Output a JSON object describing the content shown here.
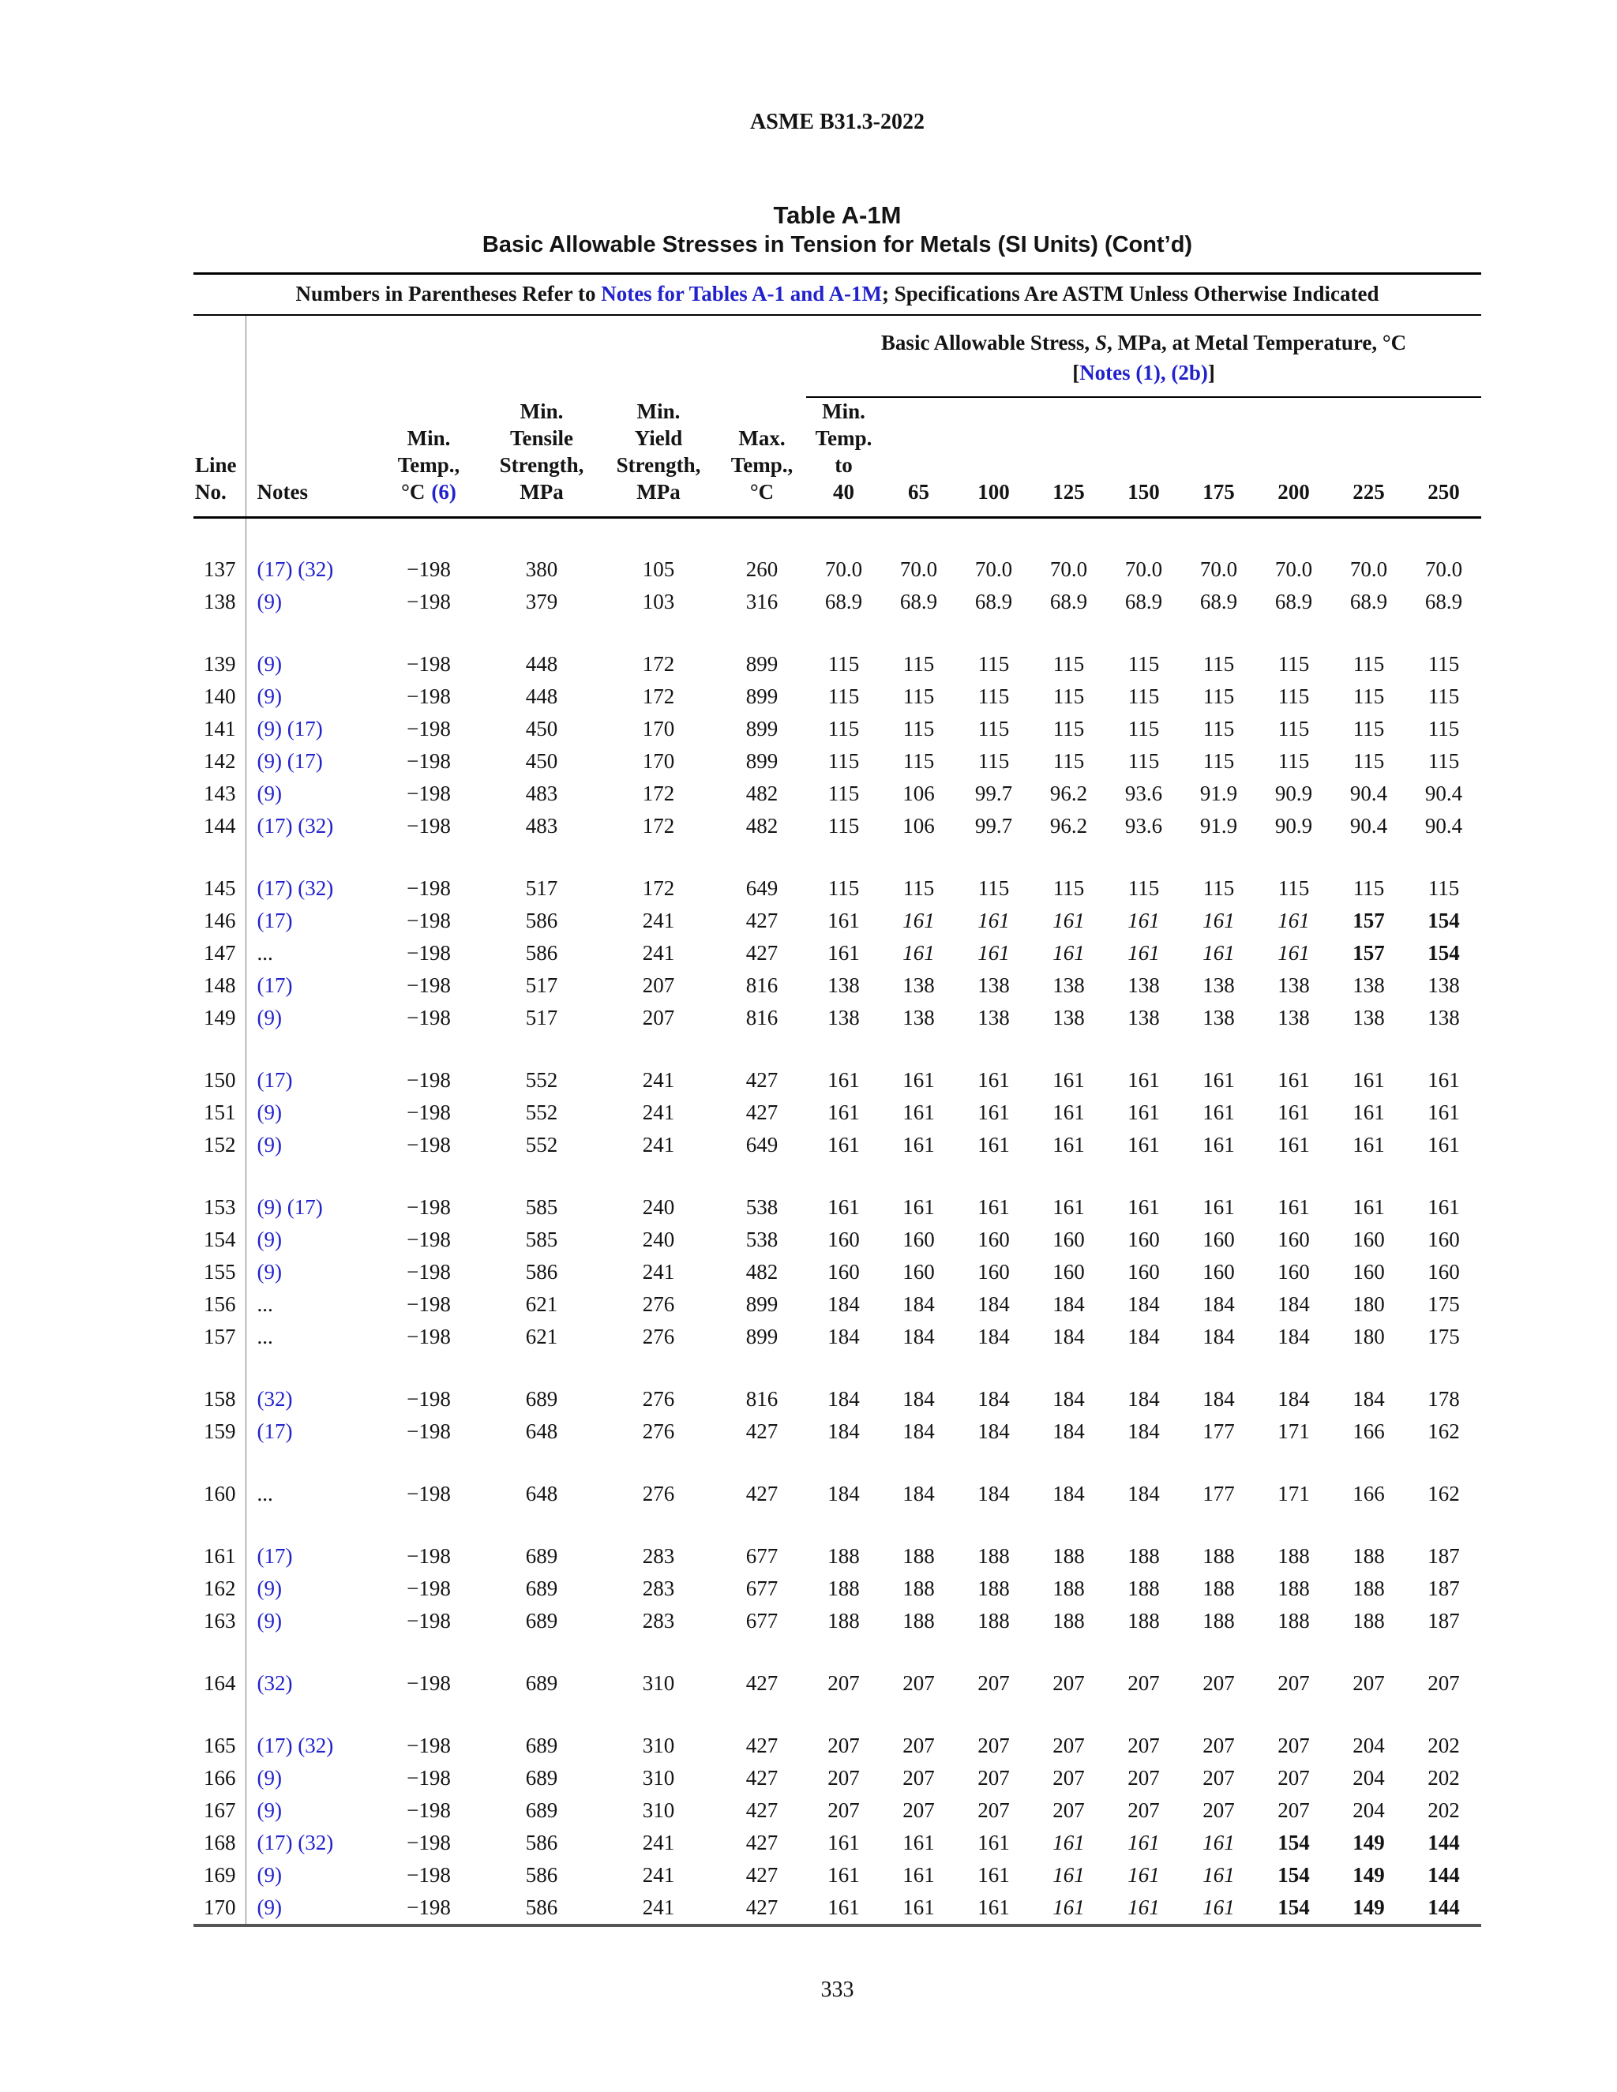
{
  "colors": {
    "link_blue": "#2222cc",
    "rule_gray": "#555555"
  },
  "header": {
    "doc_code": "ASME B31.3-2022"
  },
  "title": {
    "line1": "Table A-1M",
    "line2": "Basic Allowable Stresses in Tension for Metals (SI Units) (Cont’d)"
  },
  "note_line": {
    "prefix": "Numbers in Parentheses Refer to ",
    "link": "Notes for Tables A-1 and A-1M",
    "suffix": "; Specifications Are ASTM Unless Otherwise Indicated"
  },
  "span_header": {
    "pre": "Basic Allowable Stress, ",
    "s_italic": "S",
    "post": ", MPa, at Metal Temperature, °C",
    "bracket_open": "[",
    "notes_link": "Notes (1), (2b)",
    "bracket_close": "]"
  },
  "columns": {
    "line": "Line\nNo.",
    "notes": "Notes",
    "min_temp": "Min.\nTemp.,\n°C",
    "min_temp_note": "(6)",
    "tensile": "Min.\nTensile\nStrength,\nMPa",
    "yield": "Min.\nYield\nStrength,\nMPa",
    "max_temp": "Max.\nTemp.,\n°C",
    "temp_cols": [
      "Min.\nTemp.\nto\n40",
      "65",
      "100",
      "125",
      "150",
      "175",
      "200",
      "225",
      "250"
    ]
  },
  "groups": [
    [
      {
        "line": "137",
        "notes": "(17) (32)",
        "props": [
          "−198",
          "380",
          "105",
          "260"
        ],
        "stress": [
          "70.0",
          "70.0",
          "70.0",
          "70.0",
          "70.0",
          "70.0",
          "70.0",
          "70.0",
          "70.0"
        ]
      },
      {
        "line": "138",
        "notes": "(9)",
        "props": [
          "−198",
          "379",
          "103",
          "316"
        ],
        "stress": [
          "68.9",
          "68.9",
          "68.9",
          "68.9",
          "68.9",
          "68.9",
          "68.9",
          "68.9",
          "68.9"
        ]
      }
    ],
    [
      {
        "line": "139",
        "notes": "(9)",
        "props": [
          "−198",
          "448",
          "172",
          "899"
        ],
        "stress": [
          "115",
          "115",
          "115",
          "115",
          "115",
          "115",
          "115",
          "115",
          "115"
        ]
      },
      {
        "line": "140",
        "notes": "(9)",
        "props": [
          "−198",
          "448",
          "172",
          "899"
        ],
        "stress": [
          "115",
          "115",
          "115",
          "115",
          "115",
          "115",
          "115",
          "115",
          "115"
        ]
      },
      {
        "line": "141",
        "notes": "(9) (17)",
        "props": [
          "−198",
          "450",
          "170",
          "899"
        ],
        "stress": [
          "115",
          "115",
          "115",
          "115",
          "115",
          "115",
          "115",
          "115",
          "115"
        ]
      },
      {
        "line": "142",
        "notes": "(9) (17)",
        "props": [
          "−198",
          "450",
          "170",
          "899"
        ],
        "stress": [
          "115",
          "115",
          "115",
          "115",
          "115",
          "115",
          "115",
          "115",
          "115"
        ]
      },
      {
        "line": "143",
        "notes": "(9)",
        "props": [
          "−198",
          "483",
          "172",
          "482"
        ],
        "stress": [
          "115",
          "106",
          "99.7",
          "96.2",
          "93.6",
          "91.9",
          "90.9",
          "90.4",
          "90.4"
        ]
      },
      {
        "line": "144",
        "notes": "(17) (32)",
        "props": [
          "−198",
          "483",
          "172",
          "482"
        ],
        "stress": [
          "115",
          "106",
          "99.7",
          "96.2",
          "93.6",
          "91.9",
          "90.9",
          "90.4",
          "90.4"
        ]
      }
    ],
    [
      {
        "line": "145",
        "notes": "(17) (32)",
        "props": [
          "−198",
          "517",
          "172",
          "649"
        ],
        "stress": [
          "115",
          "115",
          "115",
          "115",
          "115",
          "115",
          "115",
          "115",
          "115"
        ]
      },
      {
        "line": "146",
        "notes": "(17)",
        "props": [
          "−198",
          "586",
          "241",
          "427"
        ],
        "stress": [
          "161",
          "i:161",
          "i:161",
          "i:161",
          "i:161",
          "i:161",
          "i:161",
          "b:157",
          "b:154"
        ]
      },
      {
        "line": "147",
        "notes": "...",
        "props": [
          "−198",
          "586",
          "241",
          "427"
        ],
        "stress": [
          "161",
          "i:161",
          "i:161",
          "i:161",
          "i:161",
          "i:161",
          "i:161",
          "b:157",
          "b:154"
        ]
      },
      {
        "line": "148",
        "notes": "(17)",
        "props": [
          "−198",
          "517",
          "207",
          "816"
        ],
        "stress": [
          "138",
          "138",
          "138",
          "138",
          "138",
          "138",
          "138",
          "138",
          "138"
        ]
      },
      {
        "line": "149",
        "notes": "(9)",
        "props": [
          "−198",
          "517",
          "207",
          "816"
        ],
        "stress": [
          "138",
          "138",
          "138",
          "138",
          "138",
          "138",
          "138",
          "138",
          "138"
        ]
      }
    ],
    [
      {
        "line": "150",
        "notes": "(17)",
        "props": [
          "−198",
          "552",
          "241",
          "427"
        ],
        "stress": [
          "161",
          "161",
          "161",
          "161",
          "161",
          "161",
          "161",
          "161",
          "161"
        ]
      },
      {
        "line": "151",
        "notes": "(9)",
        "props": [
          "−198",
          "552",
          "241",
          "427"
        ],
        "stress": [
          "161",
          "161",
          "161",
          "161",
          "161",
          "161",
          "161",
          "161",
          "161"
        ]
      },
      {
        "line": "152",
        "notes": "(9)",
        "props": [
          "−198",
          "552",
          "241",
          "649"
        ],
        "stress": [
          "161",
          "161",
          "161",
          "161",
          "161",
          "161",
          "161",
          "161",
          "161"
        ]
      }
    ],
    [
      {
        "line": "153",
        "notes": "(9) (17)",
        "props": [
          "−198",
          "585",
          "240",
          "538"
        ],
        "stress": [
          "161",
          "161",
          "161",
          "161",
          "161",
          "161",
          "161",
          "161",
          "161"
        ]
      },
      {
        "line": "154",
        "notes": "(9)",
        "props": [
          "−198",
          "585",
          "240",
          "538"
        ],
        "stress": [
          "160",
          "160",
          "160",
          "160",
          "160",
          "160",
          "160",
          "160",
          "160"
        ]
      },
      {
        "line": "155",
        "notes": "(9)",
        "props": [
          "−198",
          "586",
          "241",
          "482"
        ],
        "stress": [
          "160",
          "160",
          "160",
          "160",
          "160",
          "160",
          "160",
          "160",
          "160"
        ]
      },
      {
        "line": "156",
        "notes": "...",
        "props": [
          "−198",
          "621",
          "276",
          "899"
        ],
        "stress": [
          "184",
          "184",
          "184",
          "184",
          "184",
          "184",
          "184",
          "180",
          "175"
        ]
      },
      {
        "line": "157",
        "notes": "...",
        "props": [
          "−198",
          "621",
          "276",
          "899"
        ],
        "stress": [
          "184",
          "184",
          "184",
          "184",
          "184",
          "184",
          "184",
          "180",
          "175"
        ]
      }
    ],
    [
      {
        "line": "158",
        "notes": "(32)",
        "props": [
          "−198",
          "689",
          "276",
          "816"
        ],
        "stress": [
          "184",
          "184",
          "184",
          "184",
          "184",
          "184",
          "184",
          "184",
          "178"
        ]
      },
      {
        "line": "159",
        "notes": "(17)",
        "props": [
          "−198",
          "648",
          "276",
          "427"
        ],
        "stress": [
          "184",
          "184",
          "184",
          "184",
          "184",
          "177",
          "171",
          "166",
          "162"
        ]
      }
    ],
    [
      {
        "line": "160",
        "notes": "...",
        "props": [
          "−198",
          "648",
          "276",
          "427"
        ],
        "stress": [
          "184",
          "184",
          "184",
          "184",
          "184",
          "177",
          "171",
          "166",
          "162"
        ]
      }
    ],
    [
      {
        "line": "161",
        "notes": "(17)",
        "props": [
          "−198",
          "689",
          "283",
          "677"
        ],
        "stress": [
          "188",
          "188",
          "188",
          "188",
          "188",
          "188",
          "188",
          "188",
          "187"
        ]
      },
      {
        "line": "162",
        "notes": "(9)",
        "props": [
          "−198",
          "689",
          "283",
          "677"
        ],
        "stress": [
          "188",
          "188",
          "188",
          "188",
          "188",
          "188",
          "188",
          "188",
          "187"
        ]
      },
      {
        "line": "163",
        "notes": "(9)",
        "props": [
          "−198",
          "689",
          "283",
          "677"
        ],
        "stress": [
          "188",
          "188",
          "188",
          "188",
          "188",
          "188",
          "188",
          "188",
          "187"
        ]
      }
    ],
    [
      {
        "line": "164",
        "notes": "(32)",
        "props": [
          "−198",
          "689",
          "310",
          "427"
        ],
        "stress": [
          "207",
          "207",
          "207",
          "207",
          "207",
          "207",
          "207",
          "207",
          "207"
        ]
      }
    ],
    [
      {
        "line": "165",
        "notes": "(17) (32)",
        "props": [
          "−198",
          "689",
          "310",
          "427"
        ],
        "stress": [
          "207",
          "207",
          "207",
          "207",
          "207",
          "207",
          "207",
          "204",
          "202"
        ]
      },
      {
        "line": "166",
        "notes": "(9)",
        "props": [
          "−198",
          "689",
          "310",
          "427"
        ],
        "stress": [
          "207",
          "207",
          "207",
          "207",
          "207",
          "207",
          "207",
          "204",
          "202"
        ]
      },
      {
        "line": "167",
        "notes": "(9)",
        "props": [
          "−198",
          "689",
          "310",
          "427"
        ],
        "stress": [
          "207",
          "207",
          "207",
          "207",
          "207",
          "207",
          "207",
          "204",
          "202"
        ]
      },
      {
        "line": "168",
        "notes": "(17) (32)",
        "props": [
          "−198",
          "586",
          "241",
          "427"
        ],
        "stress": [
          "161",
          "161",
          "161",
          "i:161",
          "i:161",
          "i:161",
          "b:154",
          "b:149",
          "b:144"
        ]
      },
      {
        "line": "169",
        "notes": "(9)",
        "props": [
          "−198",
          "586",
          "241",
          "427"
        ],
        "stress": [
          "161",
          "161",
          "161",
          "i:161",
          "i:161",
          "i:161",
          "b:154",
          "b:149",
          "b:144"
        ]
      },
      {
        "line": "170",
        "notes": "(9)",
        "props": [
          "−198",
          "586",
          "241",
          "427"
        ],
        "stress": [
          "161",
          "161",
          "161",
          "i:161",
          "i:161",
          "i:161",
          "b:154",
          "b:149",
          "b:144"
        ]
      }
    ]
  ],
  "footer": {
    "page_number": "333"
  }
}
